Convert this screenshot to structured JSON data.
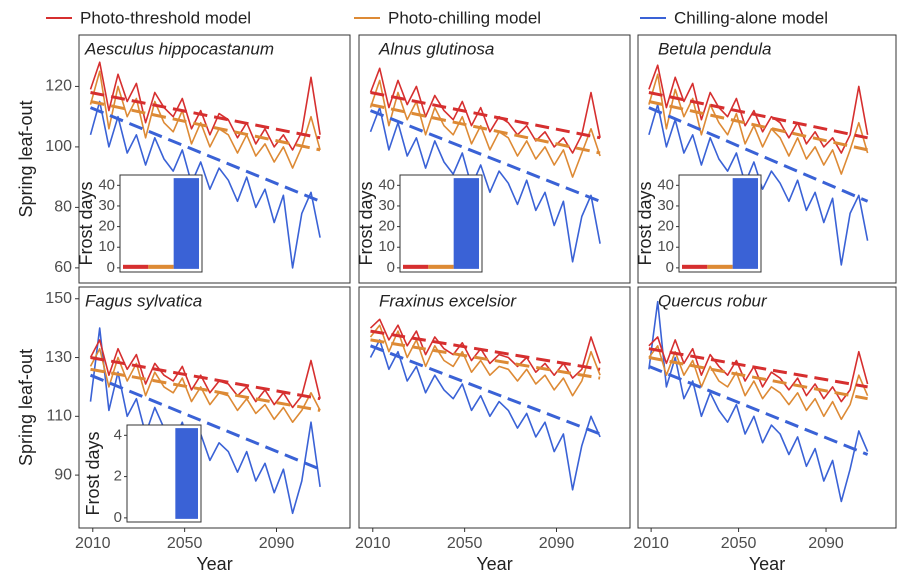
{
  "legend": [
    {
      "name": "Photo-threshold model",
      "color": "#d62f2f"
    },
    {
      "name": "Photo-chilling model",
      "color": "#dd8a35"
    },
    {
      "name": "Chilling-alone model",
      "color": "#3a62d6"
    }
  ],
  "chart_data": [
    {
      "type": "line",
      "title": "Aesculus hippocastanum",
      "ylabel": "Spring leaf-out",
      "x": [
        2009,
        2013,
        2017,
        2021,
        2025,
        2029,
        2033,
        2037,
        2041,
        2045,
        2049,
        2053,
        2057,
        2061,
        2065,
        2069,
        2073,
        2077,
        2081,
        2085,
        2089,
        2093,
        2097,
        2101,
        2105,
        2109
      ],
      "trend_x": [
        2009,
        2109
      ],
      "xlim": [
        2004,
        2122
      ],
      "ylim": [
        55,
        137
      ],
      "yticks": [
        60,
        80,
        100,
        120
      ],
      "series": [
        {
          "color": "#d62f2f",
          "values": [
            119,
            128,
            112,
            124,
            115,
            121,
            108,
            118,
            113,
            110,
            116,
            106,
            112,
            104,
            111,
            109,
            103,
            108,
            101,
            106,
            100,
            104,
            99,
            105,
            123,
            104
          ],
          "trend": [
            118,
            103
          ]
        },
        {
          "color": "#dd8a35",
          "values": [
            114,
            125,
            106,
            120,
            110,
            116,
            103,
            115,
            108,
            105,
            112,
            101,
            108,
            100,
            106,
            104,
            98,
            104,
            97,
            101,
            95,
            100,
            93,
            100,
            110,
            99
          ],
          "trend": [
            115,
            99
          ]
        },
        {
          "color": "#3a62d6",
          "values": [
            104,
            115,
            100,
            110,
            98,
            104,
            94,
            103,
            96,
            92,
            99,
            88,
            95,
            86,
            93,
            89,
            82,
            90,
            80,
            86,
            75,
            84,
            60,
            78,
            85,
            70
          ],
          "trend": [
            113,
            82
          ]
        }
      ],
      "inset": {
        "ylabel": "Frost days",
        "values": [
          1,
          1,
          43
        ],
        "ylim": [
          -2,
          45
        ],
        "yticks": [
          0,
          10,
          20,
          30,
          40
        ]
      }
    },
    {
      "type": "line",
      "title": "Alnus glutinosa",
      "x": [
        2009,
        2013,
        2017,
        2021,
        2025,
        2029,
        2033,
        2037,
        2041,
        2045,
        2049,
        2053,
        2057,
        2061,
        2065,
        2069,
        2073,
        2077,
        2081,
        2085,
        2089,
        2093,
        2097,
        2101,
        2105,
        2109
      ],
      "trend_x": [
        2009,
        2109
      ],
      "xlim": [
        2004,
        2122
      ],
      "ylim": [
        55,
        137
      ],
      "series": [
        {
          "color": "#d62f2f",
          "values": [
            118,
            126,
            113,
            122,
            114,
            120,
            110,
            117,
            112,
            109,
            115,
            107,
            113,
            105,
            110,
            108,
            104,
            107,
            102,
            105,
            100,
            103,
            98,
            104,
            118,
            103
          ],
          "trend": [
            118,
            103
          ]
        },
        {
          "color": "#dd8a35",
          "values": [
            113,
            122,
            107,
            118,
            109,
            115,
            104,
            113,
            107,
            104,
            110,
            101,
            107,
            99,
            105,
            103,
            97,
            102,
            96,
            100,
            94,
            99,
            90,
            98,
            106,
            97
          ],
          "trend": [
            114,
            98
          ]
        },
        {
          "color": "#3a62d6",
          "values": [
            105,
            113,
            99,
            108,
            97,
            103,
            93,
            102,
            95,
            91,
            98,
            87,
            94,
            85,
            92,
            88,
            81,
            89,
            79,
            85,
            74,
            82,
            62,
            77,
            84,
            68
          ],
          "trend": [
            112,
            82
          ]
        }
      ],
      "inset": {
        "ylabel": "Frost days",
        "values": [
          1,
          1,
          43
        ],
        "ylim": [
          -2,
          45
        ],
        "yticks": [
          0,
          10,
          20,
          30,
          40
        ]
      }
    },
    {
      "type": "line",
      "title": "Betula pendula",
      "x": [
        2009,
        2013,
        2017,
        2021,
        2025,
        2029,
        2033,
        2037,
        2041,
        2045,
        2049,
        2053,
        2057,
        2061,
        2065,
        2069,
        2073,
        2077,
        2081,
        2085,
        2089,
        2093,
        2097,
        2101,
        2105,
        2109
      ],
      "trend_x": [
        2009,
        2109
      ],
      "xlim": [
        2004,
        2122
      ],
      "ylim": [
        55,
        137
      ],
      "series": [
        {
          "color": "#d62f2f",
          "values": [
            119,
            127,
            113,
            123,
            115,
            121,
            109,
            118,
            113,
            110,
            116,
            107,
            112,
            105,
            110,
            108,
            103,
            108,
            101,
            105,
            100,
            103,
            98,
            104,
            120,
            104
          ],
          "trend": [
            118,
            103
          ]
        },
        {
          "color": "#dd8a35",
          "values": [
            114,
            124,
            106,
            119,
            110,
            116,
            104,
            114,
            108,
            104,
            111,
            101,
            107,
            100,
            106,
            103,
            97,
            103,
            96,
            100,
            94,
            99,
            91,
            99,
            108,
            98
          ],
          "trend": [
            115,
            99
          ]
        },
        {
          "color": "#3a62d6",
          "values": [
            104,
            114,
            100,
            109,
            98,
            104,
            94,
            103,
            96,
            92,
            98,
            88,
            95,
            86,
            92,
            88,
            82,
            89,
            79,
            85,
            75,
            83,
            61,
            78,
            84,
            69
          ],
          "trend": [
            113,
            82
          ]
        }
      ],
      "inset": {
        "ylabel": "Frost days",
        "values": [
          1,
          1,
          43
        ],
        "ylim": [
          -2,
          45
        ],
        "yticks": [
          0,
          10,
          20,
          30,
          40
        ]
      }
    },
    {
      "type": "line",
      "title": "Fagus sylvatica",
      "ylabel": "Spring leaf-out",
      "xlabel": "Year",
      "x": [
        2009,
        2013,
        2017,
        2021,
        2025,
        2029,
        2033,
        2037,
        2041,
        2045,
        2049,
        2053,
        2057,
        2061,
        2065,
        2069,
        2073,
        2077,
        2081,
        2085,
        2089,
        2093,
        2097,
        2101,
        2105,
        2109
      ],
      "trend_x": [
        2009,
        2109
      ],
      "xlim": [
        2004,
        2122
      ],
      "ylim": [
        72,
        154
      ],
      "yticks": [
        90,
        110,
        130,
        150
      ],
      "xticks": [
        2010,
        2050,
        2090
      ],
      "series": [
        {
          "color": "#d62f2f",
          "values": [
            130,
            136,
            124,
            133,
            126,
            131,
            121,
            128,
            124,
            122,
            127,
            119,
            124,
            118,
            122,
            121,
            117,
            120,
            115,
            119,
            114,
            118,
            113,
            117,
            129,
            116
          ],
          "trend": [
            130,
            116
          ]
        },
        {
          "color": "#dd8a35",
          "values": [
            127,
            133,
            120,
            130,
            122,
            128,
            117,
            125,
            120,
            118,
            123,
            115,
            120,
            114,
            118,
            117,
            112,
            116,
            111,
            114,
            109,
            113,
            108,
            112,
            118,
            112
          ],
          "trend": [
            126,
            112
          ]
        },
        {
          "color": "#3a62d6",
          "values": [
            115,
            140,
            112,
            125,
            110,
            116,
            104,
            113,
            106,
            101,
            108,
            97,
            104,
            95,
            101,
            98,
            91,
            98,
            88,
            94,
            84,
            92,
            77,
            88,
            108,
            86
          ],
          "trend": [
            124,
            92
          ]
        }
      ],
      "inset": {
        "ylabel": "Frost days",
        "values": [
          0,
          0,
          4.3
        ],
        "ylim": [
          -0.2,
          4.5
        ],
        "yticks": [
          0,
          2,
          4
        ]
      }
    },
    {
      "type": "line",
      "title": "Fraxinus excelsior",
      "xlabel": "Year",
      "x": [
        2009,
        2013,
        2017,
        2021,
        2025,
        2029,
        2033,
        2037,
        2041,
        2045,
        2049,
        2053,
        2057,
        2061,
        2065,
        2069,
        2073,
        2077,
        2081,
        2085,
        2089,
        2093,
        2097,
        2101,
        2105,
        2109
      ],
      "trend_x": [
        2009,
        2109
      ],
      "xlim": [
        2004,
        2122
      ],
      "ylim": [
        72,
        154
      ],
      "xticks": [
        2010,
        2050,
        2090
      ],
      "series": [
        {
          "color": "#d62f2f",
          "values": [
            140,
            143,
            136,
            141,
            134,
            139,
            131,
            137,
            133,
            131,
            135,
            129,
            133,
            128,
            131,
            130,
            127,
            130,
            125,
            128,
            124,
            128,
            123,
            126,
            137,
            128
          ],
          "trend": [
            139,
            126
          ]
        },
        {
          "color": "#dd8a35",
          "values": [
            137,
            141,
            132,
            139,
            130,
            136,
            127,
            134,
            129,
            127,
            132,
            125,
            129,
            124,
            127,
            126,
            122,
            126,
            121,
            124,
            119,
            123,
            117,
            122,
            132,
            124
          ],
          "trend": [
            136,
            123
          ]
        },
        {
          "color": "#3a62d6",
          "values": [
            130,
            136,
            126,
            132,
            122,
            127,
            118,
            124,
            119,
            116,
            121,
            112,
            117,
            110,
            115,
            112,
            106,
            111,
            103,
            108,
            98,
            104,
            85,
            100,
            110,
            103
          ],
          "trend": [
            134,
            104
          ]
        }
      ]
    },
    {
      "type": "line",
      "title": "Quercus robur",
      "xlabel": "Year",
      "x": [
        2009,
        2013,
        2017,
        2021,
        2025,
        2029,
        2033,
        2037,
        2041,
        2045,
        2049,
        2053,
        2057,
        2061,
        2065,
        2069,
        2073,
        2077,
        2081,
        2085,
        2089,
        2093,
        2097,
        2101,
        2105,
        2109
      ],
      "trend_x": [
        2009,
        2109
      ],
      "xlim": [
        2004,
        2122
      ],
      "ylim": [
        72,
        154
      ],
      "xticks": [
        2010,
        2050,
        2090
      ],
      "series": [
        {
          "color": "#d62f2f",
          "values": [
            134,
            137,
            128,
            136,
            128,
            133,
            124,
            131,
            127,
            124,
            129,
            122,
            127,
            120,
            125,
            123,
            119,
            123,
            117,
            121,
            116,
            120,
            115,
            119,
            132,
            121
          ],
          "trend": [
            133,
            120
          ]
        },
        {
          "color": "#dd8a35",
          "values": [
            130,
            134,
            124,
            132,
            124,
            129,
            120,
            127,
            122,
            120,
            125,
            117,
            122,
            116,
            120,
            118,
            114,
            118,
            112,
            116,
            110,
            115,
            109,
            114,
            124,
            117
          ],
          "trend": [
            130,
            116
          ]
        },
        {
          "color": "#3a62d6",
          "values": [
            126,
            149,
            120,
            130,
            116,
            122,
            110,
            118,
            112,
            108,
            114,
            104,
            110,
            101,
            107,
            104,
            97,
            103,
            93,
            99,
            88,
            95,
            81,
            92,
            105,
            98
          ],
          "trend": [
            127,
            97
          ]
        }
      ]
    }
  ]
}
